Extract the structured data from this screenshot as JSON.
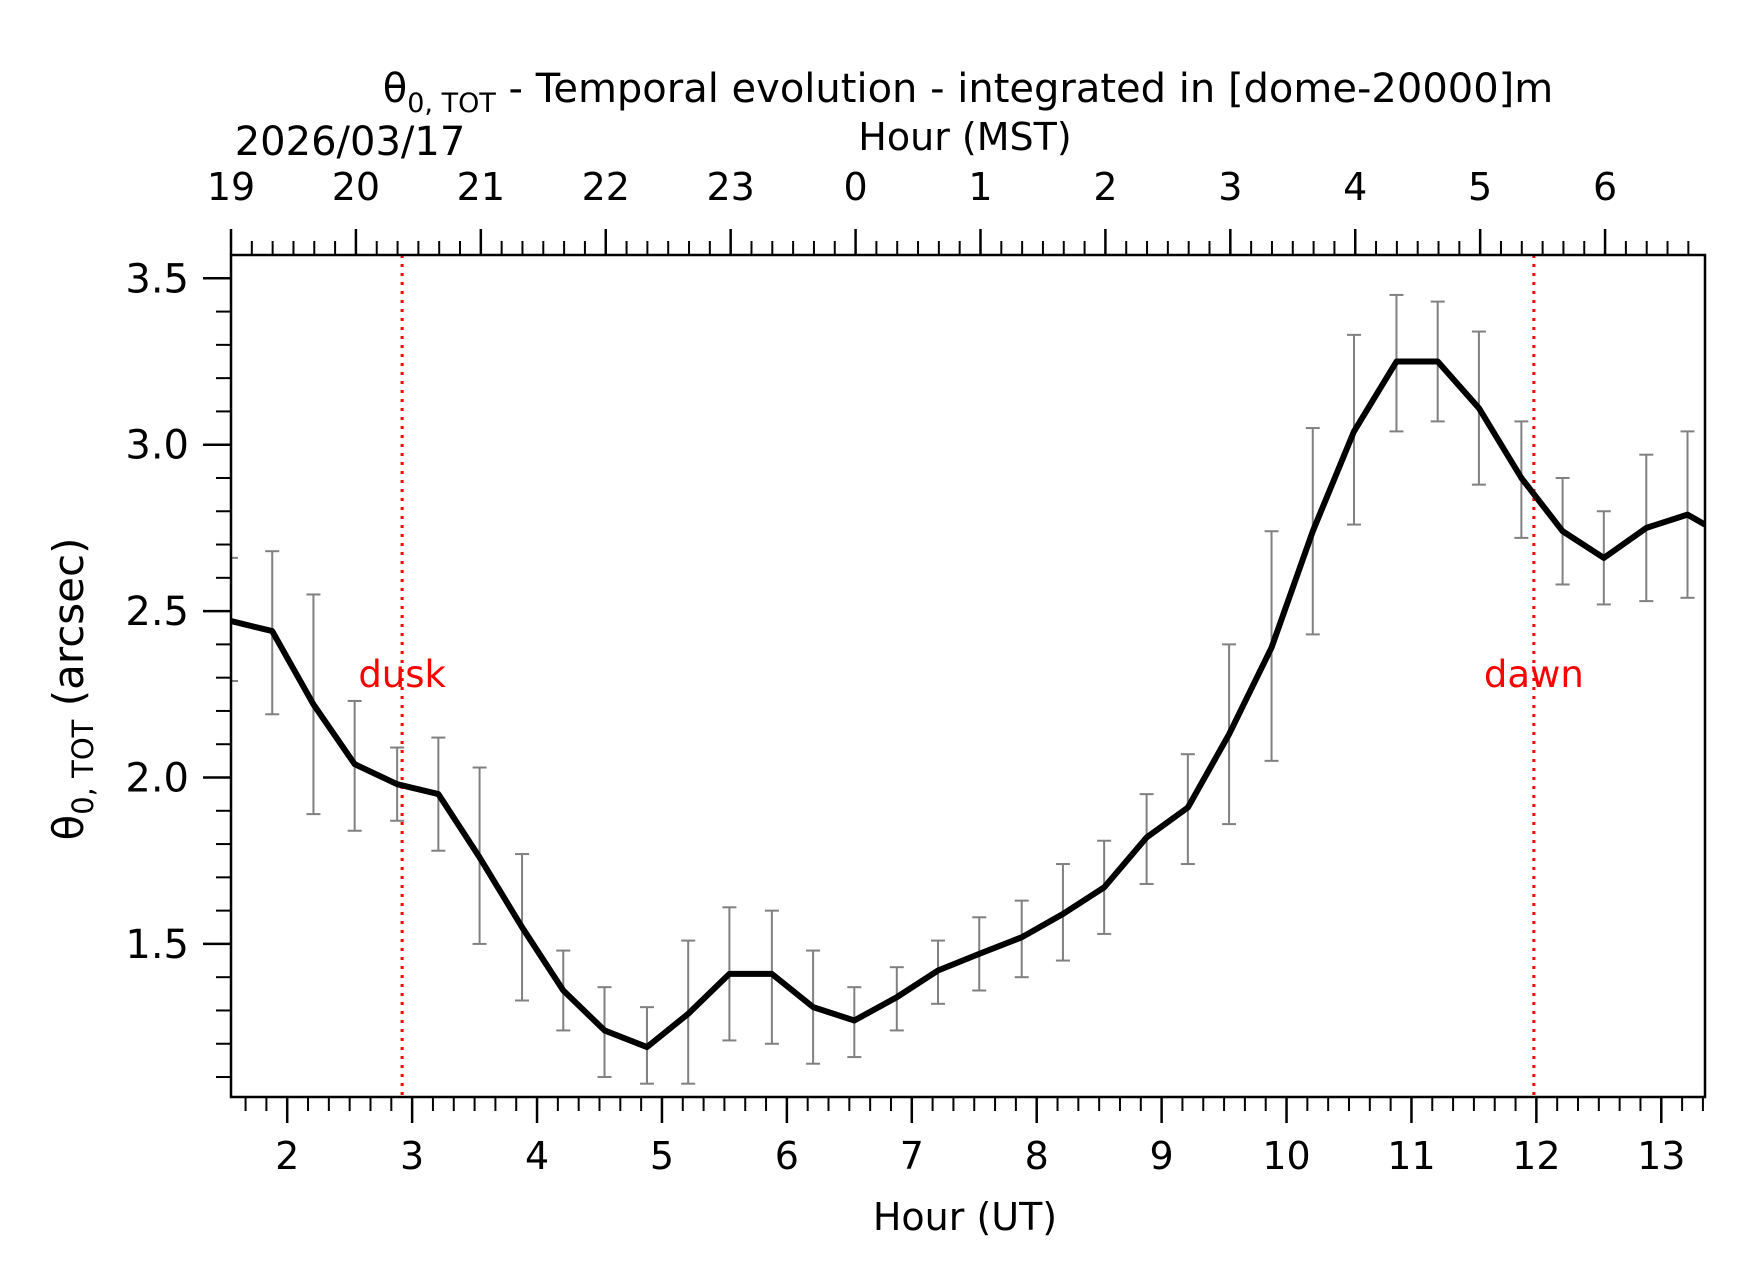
{
  "chart_data": {
    "type": "line",
    "title_main": "θ",
    "title_sub": "0, TOT",
    "title_rest": " - Temporal evolution - integrated in [dome-20000]m",
    "date": "2026/03/17",
    "xlabel": "Hour (UT)",
    "top_xlabel": "Hour (MST)",
    "ylabel_main": "θ",
    "ylabel_sub": "0, TOT",
    "ylabel_rest": " (arcsec)",
    "xlim": [
      1.55,
      13.35
    ],
    "ylim": [
      1.04,
      3.57
    ],
    "x_ticks": [
      2,
      3,
      4,
      5,
      6,
      7,
      8,
      9,
      10,
      11,
      12,
      13
    ],
    "x_tick_labels": [
      "2",
      "3",
      "4",
      "5",
      "6",
      "7",
      "8",
      "9",
      "10",
      "11",
      "12",
      "13"
    ],
    "top_ticks": [
      1.55,
      2.55,
      3.55,
      4.55,
      5.55,
      6.55,
      7.55,
      8.55,
      9.55,
      10.55,
      11.55,
      12.55
    ],
    "top_tick_labels": [
      "19",
      "20",
      "21",
      "22",
      "23",
      "0",
      "1",
      "2",
      "3",
      "4",
      "5",
      "6"
    ],
    "y_ticks": [
      1.5,
      2.0,
      2.5,
      3.0,
      3.5
    ],
    "y_tick_labels": [
      "1.5",
      "2.0",
      "2.5",
      "3.0",
      "3.5"
    ],
    "series": [
      {
        "name": "theta0_tot",
        "color": "#000000",
        "x": [
          1.55,
          1.88,
          2.21,
          2.54,
          2.88,
          3.21,
          3.54,
          3.88,
          4.21,
          4.54,
          4.88,
          5.21,
          5.54,
          5.88,
          6.21,
          6.54,
          6.88,
          7.21,
          7.54,
          7.88,
          8.21,
          8.54,
          8.88,
          9.21,
          9.54,
          9.88,
          10.21,
          10.54,
          10.88,
          11.21,
          11.54,
          11.88,
          12.21,
          12.54,
          12.88,
          13.21,
          13.35
        ],
        "y": [
          2.47,
          2.44,
          2.22,
          2.04,
          1.98,
          1.95,
          1.76,
          1.55,
          1.36,
          1.24,
          1.19,
          1.29,
          1.41,
          1.41,
          1.31,
          1.27,
          1.34,
          1.42,
          1.47,
          1.52,
          1.59,
          1.67,
          1.82,
          1.91,
          2.13,
          2.39,
          2.74,
          3.04,
          3.25,
          3.25,
          3.11,
          2.9,
          2.74,
          2.66,
          2.75,
          2.79,
          2.76
        ],
        "err_low": [
          2.29,
          2.19,
          1.89,
          1.84,
          1.87,
          1.78,
          1.5,
          1.33,
          1.24,
          1.1,
          1.08,
          1.08,
          1.21,
          1.2,
          1.14,
          1.16,
          1.24,
          1.32,
          1.36,
          1.4,
          1.45,
          1.53,
          1.68,
          1.74,
          1.86,
          2.05,
          2.43,
          2.76,
          3.04,
          3.07,
          2.88,
          2.72,
          2.58,
          2.52,
          2.53,
          2.54,
          null
        ],
        "err_high": [
          2.66,
          2.68,
          2.55,
          2.23,
          2.09,
          2.12,
          2.03,
          1.77,
          1.48,
          1.37,
          1.31,
          1.51,
          1.61,
          1.6,
          1.48,
          1.37,
          1.43,
          1.51,
          1.58,
          1.63,
          1.74,
          1.81,
          1.95,
          2.07,
          2.4,
          2.74,
          3.05,
          3.33,
          3.45,
          3.43,
          3.34,
          3.07,
          2.9,
          2.8,
          2.97,
          3.04,
          null
        ]
      }
    ],
    "errorbar_color": "#808080",
    "vlines": [
      {
        "x": 2.92,
        "label": "dusk",
        "color": "#ff0000"
      },
      {
        "x": 11.98,
        "label": "dawn",
        "color": "#ff0000"
      }
    ]
  }
}
